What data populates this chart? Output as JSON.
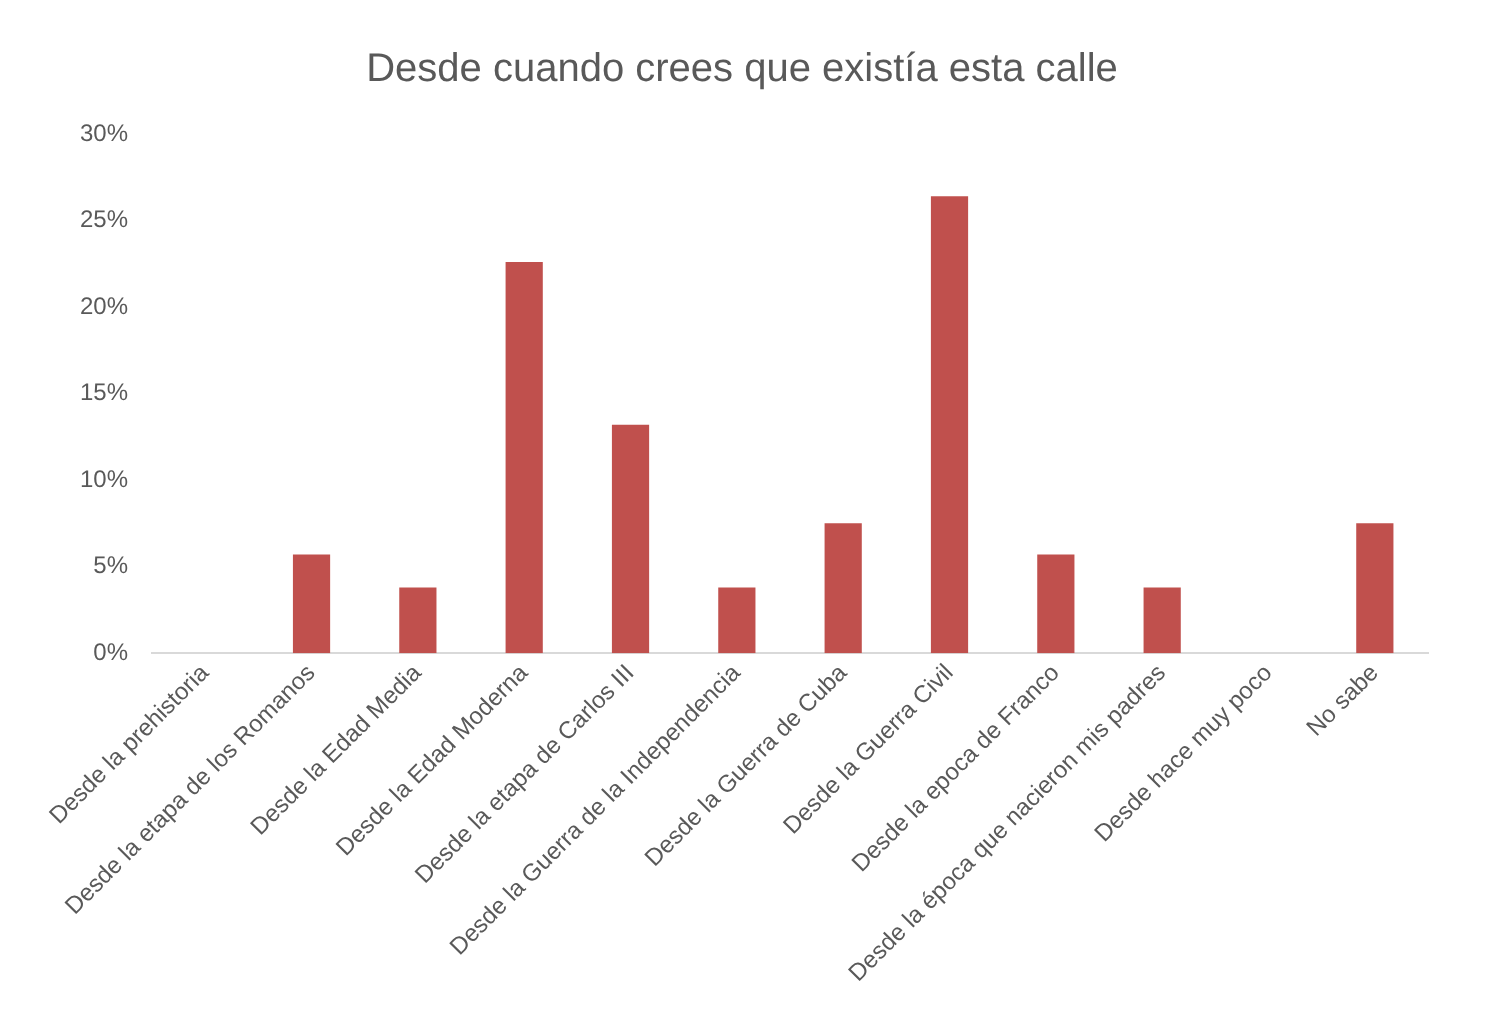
{
  "chart_data": {
    "type": "bar",
    "title": "Desde cuando crees que existía esta calle",
    "categories": [
      "Desde la prehistoria",
      "Desde la etapa de los Romanos",
      "Desde la Edad Media",
      "Desde la Edad Moderna",
      "Desde la etapa de Carlos III",
      "Desde la Guerra de la Independencia",
      "Desde la Guerra de Cuba",
      "Desde la Guerra Civil",
      "Desde la epoca de Franco",
      "Desde la época que nacieron mis padres",
      "Desde hace muy poco",
      "No sabe"
    ],
    "values": [
      0,
      5.7,
      3.8,
      22.6,
      13.2,
      3.8,
      7.5,
      26.4,
      5.7,
      3.8,
      0,
      7.5
    ],
    "color": "#c0504d",
    "ylim": [
      0,
      30
    ],
    "yticks": [
      {
        "value": 0,
        "label": "0%"
      },
      {
        "value": 5,
        "label": "5%"
      },
      {
        "value": 10,
        "label": "10%"
      },
      {
        "value": 15,
        "label": "15%"
      },
      {
        "value": 20,
        "label": "20%"
      },
      {
        "value": 25,
        "label": "25%"
      },
      {
        "value": 30,
        "label": "30%"
      }
    ],
    "grid": false,
    "legend": false
  }
}
